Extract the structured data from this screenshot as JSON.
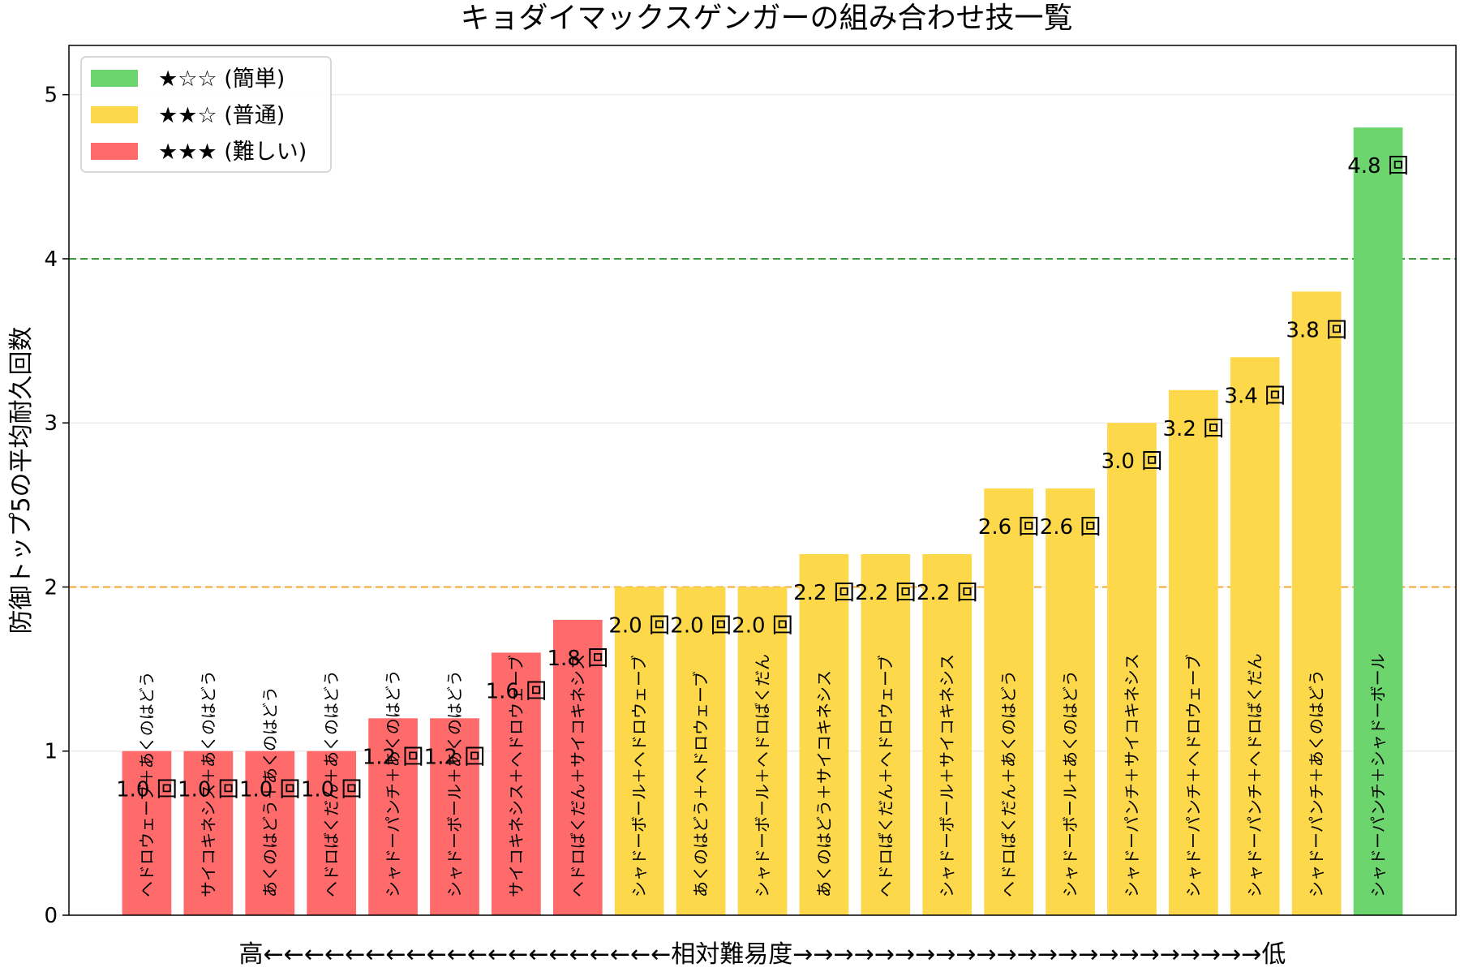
{
  "chart_data": {
    "type": "bar",
    "title": "キョダイマックスゲンガーの組み合わせ技一覧",
    "ylabel": "防御トップ5の平均耐久回数",
    "xlabel": "高←←←←←←←←←←←←←←←←←←←←相対難易度→→→→→→→→→→→→→→→→→→→→→→→低",
    "ylim": [
      0,
      5.3
    ],
    "yticks": [
      "0",
      "1",
      "2",
      "3",
      "4",
      "5"
    ],
    "grid": "y",
    "legend_position": "top-left",
    "categories": [
      "ヘドロウェーブ＋あくのはどう",
      "サイコキネシス＋あくのはどう",
      "あくのはどう＋あくのはどう",
      "ヘドロばくだん＋あくのはどう",
      "シャドーパンチ＋あくのはどう",
      "シャドーボール＋あくのはどう",
      "サイコキネシス＋ヘドロウェーブ",
      "ヘドロばくだん＋サイコキネシス",
      "シャドーボール＋ヘドロウェーブ",
      "あくのはどう＋ヘドロウェーブ",
      "シャドーボール＋ヘドロばくだん",
      "あくのはどう＋サイコキネシス",
      "ヘドロばくだん＋ヘドロウェーブ",
      "シャドーボール＋サイコキネシス",
      "ヘドロばくだん＋あくのはどう",
      "シャドーボール＋あくのはどう",
      "シャドーパンチ＋サイコキネシス",
      "シャドーパンチ＋ヘドロウェーブ",
      "シャドーパンチ＋ヘドロばくだん",
      "シャドーパンチ＋あくのはどう",
      "シャドーパンチ＋シャドーボール"
    ],
    "values": [
      1.0,
      1.0,
      1.0,
      1.0,
      1.2,
      1.2,
      1.6,
      1.8,
      2.0,
      2.0,
      2.0,
      2.2,
      2.2,
      2.2,
      2.6,
      2.6,
      3.0,
      3.2,
      3.4,
      3.8,
      4.8
    ],
    "value_labels": [
      "1.0 回",
      "1.0 回",
      "1.0 回",
      "1.0 回",
      "1.2 回",
      "1.2 回",
      "1.6 回",
      "1.8 回",
      "2.0 回",
      "2.0 回",
      "2.0 回",
      "2.2 回",
      "2.2 回",
      "2.2 回",
      "2.6 回",
      "2.6 回",
      "3.0 回",
      "3.2 回",
      "3.4 回",
      "3.8 回",
      "4.8 回"
    ],
    "difficulty": [
      "hard",
      "hard",
      "hard",
      "hard",
      "hard",
      "hard",
      "hard",
      "hard",
      "normal",
      "normal",
      "normal",
      "normal",
      "normal",
      "normal",
      "normal",
      "normal",
      "normal",
      "normal",
      "normal",
      "normal",
      "easy"
    ],
    "colors": {
      "easy": "#6dd56d",
      "normal": "#fcd84a",
      "hard": "#ff6b6b"
    },
    "reference_lines": [
      {
        "value": 4,
        "color": "#3c9a3c"
      },
      {
        "value": 2,
        "color": "#f0a830"
      }
    ],
    "legend": [
      {
        "key": "easy",
        "label": "★☆☆ (簡単)"
      },
      {
        "key": "normal",
        "label": "★★☆ (普通)"
      },
      {
        "key": "hard",
        "label": "★★★ (難しい)"
      }
    ]
  }
}
